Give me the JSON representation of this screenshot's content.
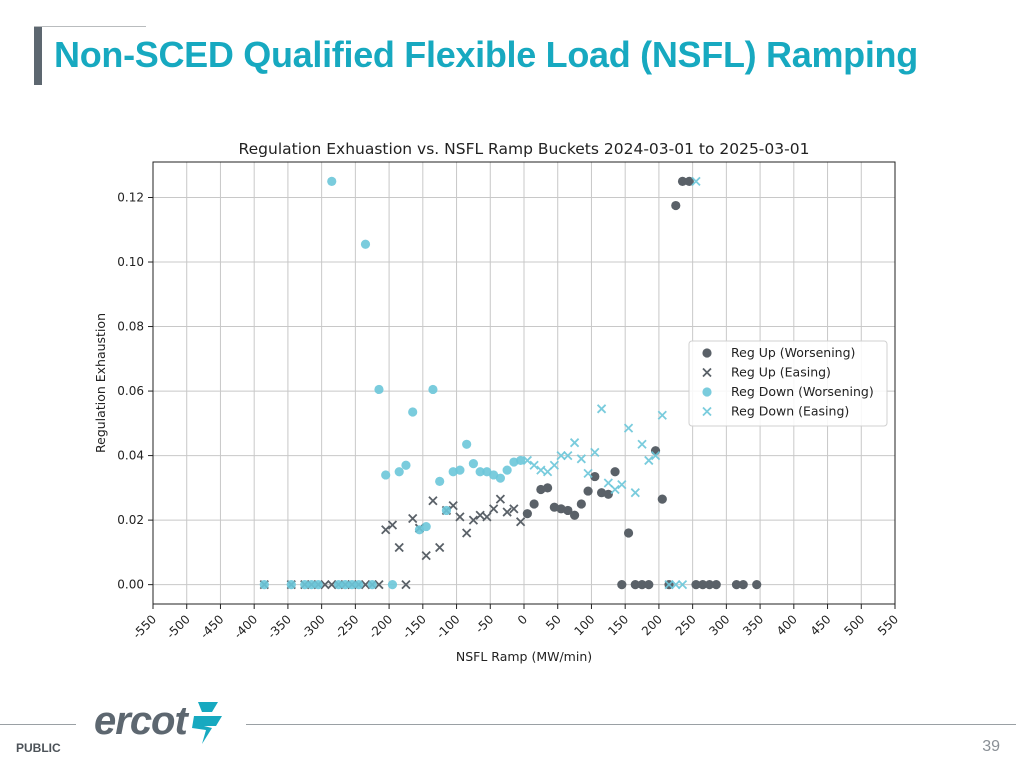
{
  "slide": {
    "title": "Non-SCED Qualified Flexible Load (NSFL) Ramping",
    "footer_label": "PUBLIC",
    "page_number": "39",
    "logo_text": "ercot",
    "accent_color": "#17a9c0",
    "bar_color": "#5d6770"
  },
  "chart_data": {
    "type": "scatter",
    "title": "Regulation Exhuastion vs. NSFL Ramp Buckets 2024-03-01 to 2025-03-01",
    "xlabel": "NSFL Ramp (MW/min)",
    "ylabel": "Regulation Exhaustion",
    "xlim": [
      -550,
      550
    ],
    "ylim": [
      -0.006,
      0.131
    ],
    "xticks": [
      -550,
      -500,
      -450,
      -400,
      -350,
      -300,
      -250,
      -200,
      -150,
      -100,
      -50,
      0,
      50,
      100,
      150,
      200,
      250,
      300,
      350,
      400,
      450,
      500,
      550
    ],
    "yticks": [
      0.0,
      0.02,
      0.04,
      0.06,
      0.08,
      0.1,
      0.12
    ],
    "grid": true,
    "legend_position": "center-right",
    "series": [
      {
        "name": "Reg Up (Worsening)",
        "marker": "circle",
        "color": "#5a6168",
        "points": [
          [
            5,
            0.022
          ],
          [
            15,
            0.025
          ],
          [
            25,
            0.0295
          ],
          [
            35,
            0.03
          ],
          [
            45,
            0.024
          ],
          [
            55,
            0.0235
          ],
          [
            65,
            0.023
          ],
          [
            75,
            0.0215
          ],
          [
            85,
            0.025
          ],
          [
            95,
            0.029
          ],
          [
            105,
            0.0335
          ],
          [
            115,
            0.0285
          ],
          [
            125,
            0.028
          ],
          [
            135,
            0.035
          ],
          [
            145,
            0.0
          ],
          [
            155,
            0.016
          ],
          [
            165,
            0.0
          ],
          [
            175,
            0.0
          ],
          [
            185,
            0.0
          ],
          [
            195,
            0.0415
          ],
          [
            205,
            0.0265
          ],
          [
            215,
            0.0
          ],
          [
            225,
            0.1175
          ],
          [
            235,
            0.125
          ],
          [
            245,
            0.125
          ],
          [
            255,
            0.0
          ],
          [
            265,
            0.0
          ],
          [
            275,
            0.0
          ],
          [
            285,
            0.0
          ],
          [
            315,
            0.0
          ],
          [
            325,
            0.0
          ],
          [
            345,
            0.0
          ]
        ]
      },
      {
        "name": "Reg Up (Easing)",
        "marker": "x",
        "color": "#5a6168",
        "points": [
          [
            -385,
            0.0
          ],
          [
            -345,
            0.0
          ],
          [
            -325,
            0.0
          ],
          [
            -315,
            0.0
          ],
          [
            -305,
            0.0
          ],
          [
            -295,
            0.0
          ],
          [
            -285,
            0.0
          ],
          [
            -275,
            0.0
          ],
          [
            -265,
            0.0
          ],
          [
            -255,
            0.0
          ],
          [
            -245,
            0.0
          ],
          [
            -235,
            0.0
          ],
          [
            -225,
            0.0
          ],
          [
            -215,
            0.0
          ],
          [
            -205,
            0.017
          ],
          [
            -195,
            0.0185
          ],
          [
            -185,
            0.0115
          ],
          [
            -175,
            0.0
          ],
          [
            -165,
            0.0205
          ],
          [
            -155,
            0.0175
          ],
          [
            -145,
            0.009
          ],
          [
            -135,
            0.026
          ],
          [
            -125,
            0.0115
          ],
          [
            -115,
            0.023
          ],
          [
            -105,
            0.0245
          ],
          [
            -95,
            0.021
          ],
          [
            -85,
            0.016
          ],
          [
            -75,
            0.02
          ],
          [
            -65,
            0.0215
          ],
          [
            -55,
            0.021
          ],
          [
            -45,
            0.0235
          ],
          [
            -35,
            0.0265
          ],
          [
            -25,
            0.0225
          ],
          [
            -15,
            0.0235
          ],
          [
            -5,
            0.0195
          ]
        ]
      },
      {
        "name": "Reg Down (Worsening)",
        "marker": "circle",
        "color": "#6cc7d9",
        "points": [
          [
            -385,
            0.0
          ],
          [
            -345,
            0.0
          ],
          [
            -325,
            0.0
          ],
          [
            -315,
            0.0
          ],
          [
            -305,
            0.0
          ],
          [
            -285,
            0.125
          ],
          [
            -275,
            0.0
          ],
          [
            -265,
            0.0
          ],
          [
            -255,
            0.0
          ],
          [
            -245,
            0.0
          ],
          [
            -235,
            0.1055
          ],
          [
            -225,
            0.0
          ],
          [
            -215,
            0.0605
          ],
          [
            -205,
            0.034
          ],
          [
            -195,
            0.0
          ],
          [
            -185,
            0.035
          ],
          [
            -175,
            0.037
          ],
          [
            -165,
            0.0535
          ],
          [
            -155,
            0.017
          ],
          [
            -145,
            0.018
          ],
          [
            -135,
            0.0605
          ],
          [
            -125,
            0.032
          ],
          [
            -115,
            0.023
          ],
          [
            -105,
            0.035
          ],
          [
            -95,
            0.0355
          ],
          [
            -85,
            0.0435
          ],
          [
            -75,
            0.0375
          ],
          [
            -65,
            0.035
          ],
          [
            -55,
            0.035
          ],
          [
            -45,
            0.034
          ],
          [
            -35,
            0.033
          ],
          [
            -25,
            0.0355
          ],
          [
            -15,
            0.038
          ],
          [
            -5,
            0.0385
          ]
        ]
      },
      {
        "name": "Reg Down (Easing)",
        "marker": "x",
        "color": "#6cc7d9",
        "points": [
          [
            5,
            0.0385
          ],
          [
            15,
            0.037
          ],
          [
            25,
            0.0355
          ],
          [
            35,
            0.035
          ],
          [
            45,
            0.037
          ],
          [
            55,
            0.04
          ],
          [
            65,
            0.04
          ],
          [
            75,
            0.044
          ],
          [
            85,
            0.039
          ],
          [
            95,
            0.0345
          ],
          [
            105,
            0.041
          ],
          [
            115,
            0.0545
          ],
          [
            125,
            0.0315
          ],
          [
            135,
            0.0295
          ],
          [
            145,
            0.031
          ],
          [
            155,
            0.0485
          ],
          [
            165,
            0.0285
          ],
          [
            175,
            0.0435
          ],
          [
            185,
            0.0385
          ],
          [
            195,
            0.04
          ],
          [
            205,
            0.0525
          ],
          [
            215,
            0.0
          ],
          [
            225,
            0.0
          ],
          [
            235,
            0.0
          ],
          [
            255,
            0.125
          ]
        ]
      }
    ]
  }
}
